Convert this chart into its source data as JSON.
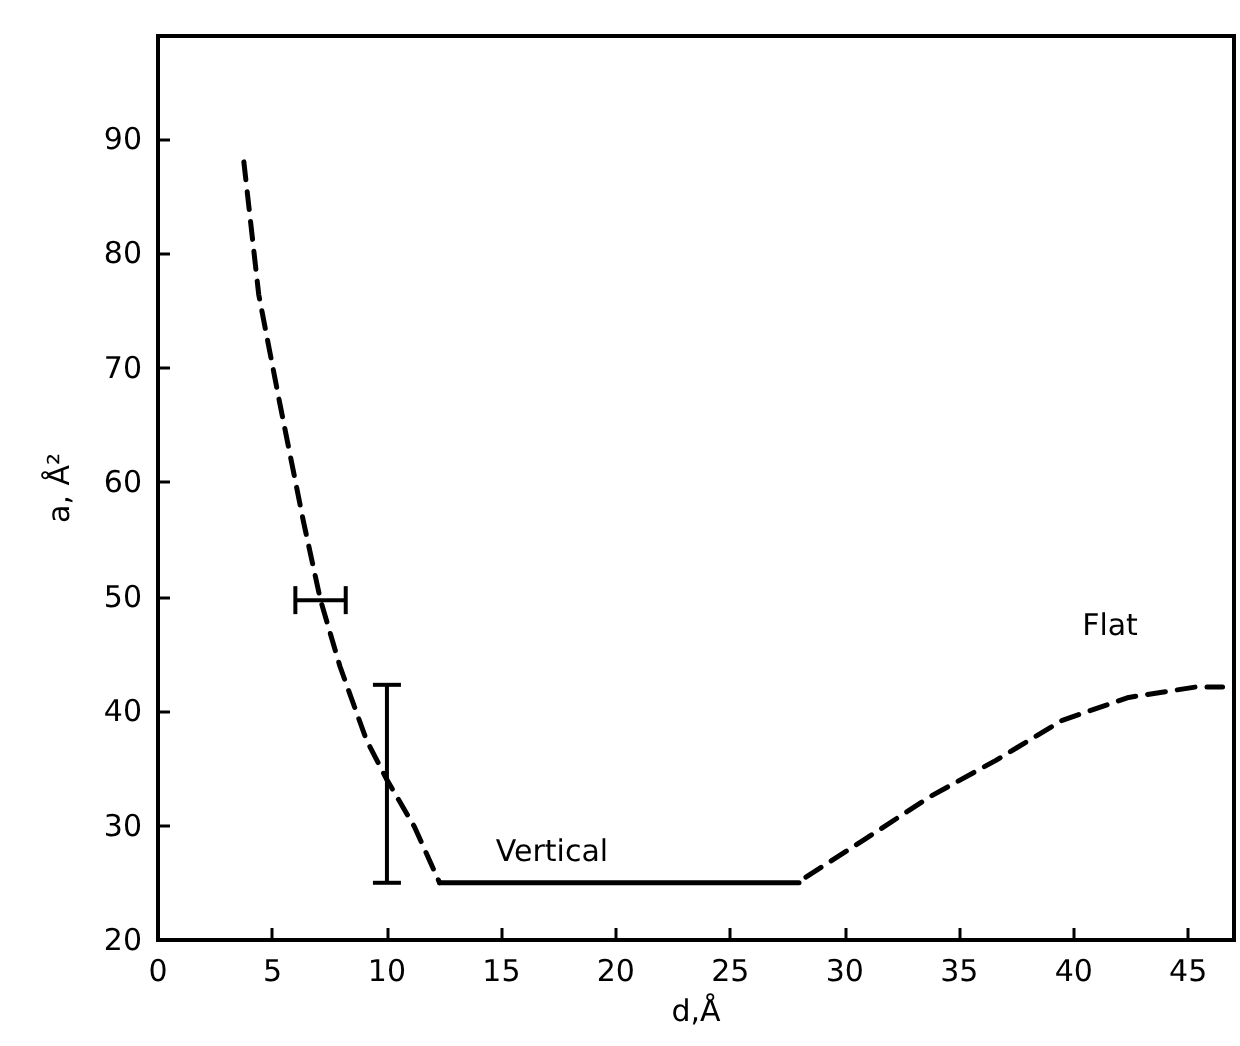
{
  "chart_data": {
    "type": "line",
    "xlabel": "d,Å",
    "ylabel": "a, Å²",
    "xlim": [
      0,
      47
    ],
    "ylim": [
      20,
      99
    ],
    "xticks": [
      0,
      5,
      10,
      15,
      20,
      25,
      30,
      35,
      40,
      45
    ],
    "yticks": [
      20,
      30,
      40,
      50,
      60,
      70,
      80,
      90
    ],
    "grid": false,
    "marker": "none",
    "series": [
      {
        "color": "#000000",
        "line_style": "dashed",
        "x": [
          3.75,
          4.4,
          5.3,
          6.35,
          7.1,
          7.95,
          9.1,
          10,
          11.2,
          12.3
        ],
        "values": [
          88,
          76.4,
          67.1,
          56.6,
          49.7,
          43.9,
          37.5,
          34,
          29.9,
          25
        ],
        "errors": [
          null,
          null,
          null,
          null,
          null,
          null,
          null,
          [
            25,
            42.3
          ],
          null,
          null
        ],
        "xerrors": [
          null,
          null,
          null,
          null,
          [
            6,
            8.2
          ],
          null,
          null,
          null,
          null,
          null
        ]
      },
      {
        "color": "#000000",
        "line_style": "solid",
        "x": [
          12.3,
          28
        ],
        "values": [
          25,
          25
        ]
      },
      {
        "color": "#000000",
        "line_style": "dashed",
        "x": [
          28.3,
          30.8,
          33.7,
          36.6,
          39.5,
          42.4,
          45.3,
          46.5
        ],
        "values": [
          25.5,
          28.7,
          32.5,
          35.7,
          39.2,
          41.2,
          42.1,
          42.1
        ]
      }
    ],
    "annotations": [
      "Vertical",
      "Flat"
    ]
  }
}
